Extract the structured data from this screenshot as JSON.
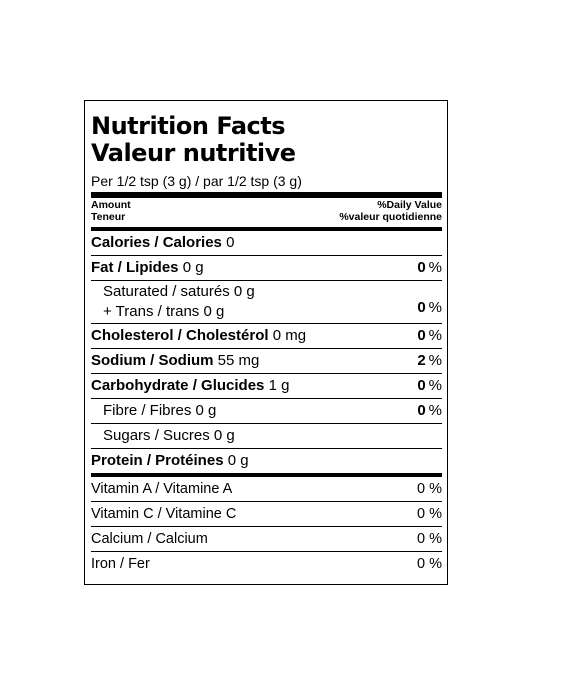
{
  "label": {
    "title_en": "Nutrition Facts",
    "title_fr": "Valeur nutritive",
    "serving": "Per 1/2 tsp (3 g) / par 1/2 tsp (3 g)",
    "header": {
      "amount_en": "Amount",
      "amount_fr": "Teneur",
      "dv_en": "%Daily Value",
      "dv_fr": "%valeur quotidienne"
    },
    "calories": {
      "name": "Calories / Calories",
      "amount": "0"
    },
    "fat": {
      "name": "Fat / Lipides",
      "amount": "0 g",
      "dv": "0",
      "pct": "%"
    },
    "saturated": {
      "line1": "Saturated / saturés 0 g",
      "line2": "+ Trans / trans 0 g",
      "dv": "0",
      "pct": "%"
    },
    "cholesterol": {
      "name": "Cholesterol / Cholestérol",
      "amount": "0 mg",
      "dv": "0",
      "pct": "%"
    },
    "sodium": {
      "name": "Sodium / Sodium",
      "amount": "55 mg",
      "dv": "2",
      "pct": "%"
    },
    "carbohydrate": {
      "name": "Carbohydrate / Glucides",
      "amount": "1 g",
      "dv": "0",
      "pct": "%"
    },
    "fibre": {
      "name": "Fibre / Fibres 0 g",
      "dv": "0",
      "pct": "%"
    },
    "sugars": {
      "name": "Sugars / Sucres 0 g"
    },
    "protein": {
      "name": "Protein / Protéines",
      "amount": "0 g"
    },
    "vitamins": [
      {
        "name": "Vitamin A / Vitamine A",
        "dv": "0 %"
      },
      {
        "name": "Vitamin C / Vitamine C",
        "dv": "0 %"
      },
      {
        "name": "Calcium / Calcium",
        "dv": "0 %"
      },
      {
        "name": "Iron / Fer",
        "dv": "0 %"
      }
    ]
  }
}
